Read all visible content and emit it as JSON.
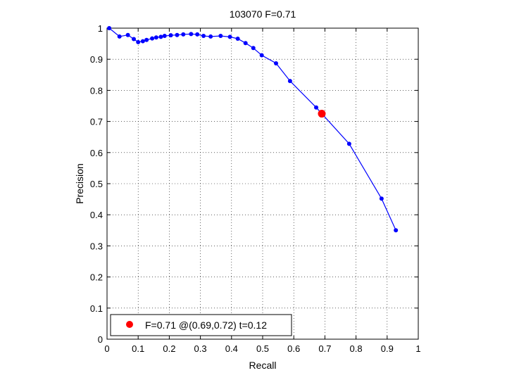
{
  "chart_data": {
    "type": "line",
    "title": "103070 F=0.71",
    "xlabel": "Recall",
    "ylabel": "Precision",
    "xlim": [
      0,
      1
    ],
    "ylim": [
      0,
      1
    ],
    "grid": true,
    "x_ticks": [
      "0",
      "0.1",
      "0.2",
      "0.3",
      "0.4",
      "0.5",
      "0.6",
      "0.7",
      "0.8",
      "0.9",
      "1"
    ],
    "y_ticks": [
      "0",
      "0.1",
      "0.2",
      "0.3",
      "0.4",
      "0.5",
      "0.6",
      "0.7",
      "0.8",
      "0.9",
      "1"
    ],
    "series": [
      {
        "color": "#0000ff",
        "x": [
          0.007,
          0.04,
          0.067,
          0.086,
          0.1,
          0.115,
          0.127,
          0.145,
          0.158,
          0.173,
          0.185,
          0.205,
          0.225,
          0.245,
          0.27,
          0.29,
          0.31,
          0.333,
          0.365,
          0.395,
          0.42,
          0.445,
          0.47,
          0.497,
          0.543,
          0.588,
          0.672,
          0.778,
          0.882,
          0.928
        ],
        "y": [
          1.0,
          0.973,
          0.978,
          0.965,
          0.955,
          0.958,
          0.962,
          0.967,
          0.97,
          0.972,
          0.975,
          0.977,
          0.978,
          0.98,
          0.981,
          0.98,
          0.975,
          0.973,
          0.975,
          0.972,
          0.966,
          0.952,
          0.936,
          0.913,
          0.887,
          0.83,
          0.745,
          0.628,
          0.452,
          0.35
        ]
      }
    ],
    "highlight_point": {
      "x": 0.69,
      "y": 0.725,
      "color": "#ff0000"
    },
    "legend": {
      "position": "bottom-left",
      "marker_color": "#ff0000",
      "label": "F=0.71 @(0.69,0.72) t=0.12"
    }
  }
}
